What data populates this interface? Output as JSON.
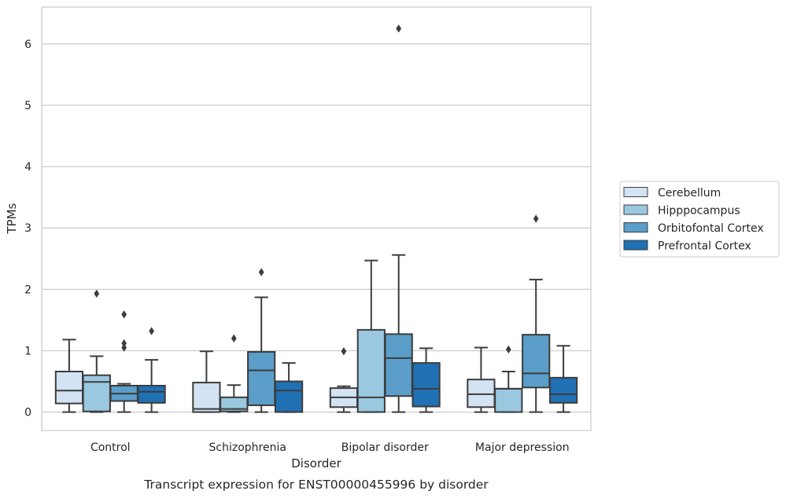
{
  "chart_data": {
    "type": "box",
    "title": "Transcript expression for ENST00000455996 by disorder",
    "xlabel": "Disorder",
    "ylabel": "TPMs",
    "ylim": [
      -0.3,
      6.6
    ],
    "yticks": [
      0,
      1,
      2,
      3,
      4,
      5,
      6
    ],
    "grid": true,
    "legend_position": "right",
    "categories": [
      "Control",
      "Schizophrenia",
      "Bipolar disorder",
      "Major depression"
    ],
    "series": [
      {
        "name": "Cerebellum",
        "color": "#d3e3f3",
        "boxes": [
          {
            "whislo": 0.0,
            "q1": 0.14,
            "med": 0.35,
            "q3": 0.66,
            "whishi": 1.18,
            "fliers": []
          },
          {
            "whislo": 0.0,
            "q1": 0.0,
            "med": 0.05,
            "q3": 0.48,
            "whishi": 0.99,
            "fliers": []
          },
          {
            "whislo": 0.0,
            "q1": 0.08,
            "med": 0.24,
            "q3": 0.39,
            "whishi": 0.42,
            "fliers": [
              0.99
            ]
          },
          {
            "whislo": 0.0,
            "q1": 0.08,
            "med": 0.29,
            "q3": 0.53,
            "whishi": 1.05,
            "fliers": []
          }
        ]
      },
      {
        "name": "Hipppocampus",
        "color": "#9ac8e0",
        "boxes": [
          {
            "whislo": 0.0,
            "q1": 0.01,
            "med": 0.49,
            "q3": 0.6,
            "whishi": 0.91,
            "fliers": [
              1.93
            ]
          },
          {
            "whislo": 0.0,
            "q1": 0.01,
            "med": 0.05,
            "q3": 0.24,
            "whishi": 0.44,
            "fliers": [
              1.2
            ]
          },
          {
            "whislo": 0.0,
            "q1": 0.0,
            "med": 0.24,
            "q3": 1.34,
            "whishi": 2.47,
            "fliers": []
          },
          {
            "whislo": 0.0,
            "q1": 0.0,
            "med": 0.38,
            "q3": 0.38,
            "whishi": 0.66,
            "fliers": [
              1.02
            ]
          }
        ]
      },
      {
        "name": "Orbitofontal Cortex",
        "color": "#5a9ec9",
        "boxes": [
          {
            "whislo": 0.0,
            "q1": 0.18,
            "med": 0.3,
            "q3": 0.43,
            "whishi": 0.46,
            "fliers": [
              1.05,
              1.12,
              1.59
            ]
          },
          {
            "whislo": 0.0,
            "q1": 0.11,
            "med": 0.68,
            "q3": 0.98,
            "whishi": 1.87,
            "fliers": [
              2.28
            ]
          },
          {
            "whislo": 0.0,
            "q1": 0.26,
            "med": 0.88,
            "q3": 1.27,
            "whishi": 2.56,
            "fliers": [
              6.25
            ]
          },
          {
            "whislo": 0.0,
            "q1": 0.4,
            "med": 0.63,
            "q3": 1.26,
            "whishi": 2.16,
            "fliers": [
              3.15
            ]
          }
        ]
      },
      {
        "name": "Prefrontal Cortex",
        "color": "#2070b4",
        "boxes": [
          {
            "whislo": 0.0,
            "q1": 0.15,
            "med": 0.33,
            "q3": 0.43,
            "whishi": 0.85,
            "fliers": [
              1.32
            ]
          },
          {
            "whislo": 0.0,
            "q1": 0.0,
            "med": 0.35,
            "q3": 0.5,
            "whishi": 0.8,
            "fliers": []
          },
          {
            "whislo": 0.0,
            "q1": 0.09,
            "med": 0.38,
            "q3": 0.8,
            "whishi": 1.04,
            "fliers": []
          },
          {
            "whislo": 0.0,
            "q1": 0.15,
            "med": 0.29,
            "q3": 0.56,
            "whishi": 1.08,
            "fliers": []
          }
        ]
      }
    ]
  }
}
